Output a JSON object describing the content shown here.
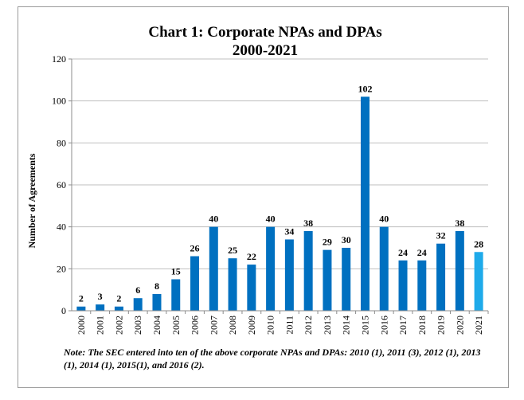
{
  "chart_data": {
    "type": "bar",
    "title": "Chart 1: Corporate NPAs and DPAs",
    "subtitle": "2000-2021",
    "xlabel": "",
    "ylabel": "Number of Agreements",
    "ylim": [
      0,
      120
    ],
    "yticks": [
      0,
      20,
      40,
      60,
      80,
      100,
      120
    ],
    "grid": true,
    "categories": [
      "2000",
      "2001",
      "2002",
      "2003",
      "2004",
      "2005",
      "2006",
      "2007",
      "2008",
      "2009",
      "2010",
      "2011",
      "2012",
      "2013",
      "2014",
      "2015",
      "2016",
      "2017",
      "2018",
      "2019",
      "2020",
      "2021"
    ],
    "values": [
      2,
      3,
      2,
      6,
      8,
      15,
      26,
      40,
      25,
      22,
      40,
      34,
      38,
      29,
      30,
      102,
      40,
      24,
      24,
      32,
      38,
      28
    ],
    "colors": {
      "bar": "#0070c0",
      "highlight": "#1eaaea",
      "grid": "#bfbfbf",
      "axis": "#8c8c8c"
    },
    "highlight_category": "2021"
  },
  "note": "Note: The SEC entered into ten of the above corporate NPAs and DPAs: 2010 (1), 2011 (3), 2012 (1), 2013 (1), 2014 (1), 2015(1), and 2016 (2)."
}
